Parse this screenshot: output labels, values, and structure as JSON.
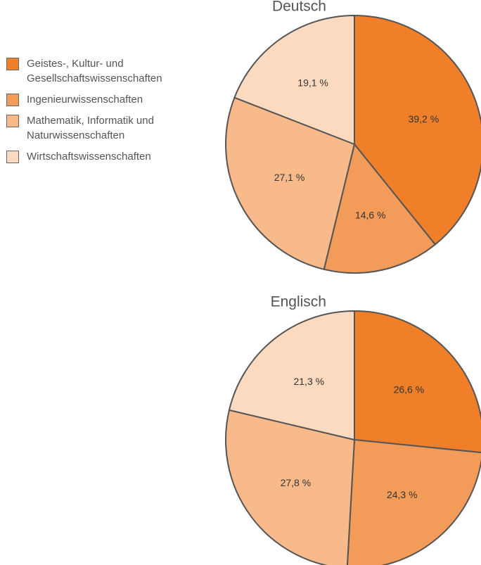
{
  "chart_data": {
    "type": "pie",
    "categories": [
      "Geistes-, Kultur- und Gesellschaftswissenschaften",
      "Ingenieurwissenschaften",
      "Mathematik, Informatik und Naturwissenschaften",
      "Wirtschaftswissenschaften"
    ],
    "colors": [
      "#f07f2a",
      "#f39b59",
      "#f8ba8b",
      "#fcdac0"
    ],
    "charts": [
      {
        "title": "Deutsch",
        "values": [
          39.2,
          14.6,
          27.1,
          19.1
        ],
        "value_labels": [
          "39,2 %",
          "14,6 %",
          "27,1 %",
          "19,1 %"
        ]
      },
      {
        "title": "Englisch",
        "values": [
          26.6,
          24.3,
          27.8,
          21.3
        ],
        "value_labels": [
          "26,6 %",
          "24,3 %",
          "27,8 %",
          "21,3 %"
        ]
      }
    ]
  }
}
